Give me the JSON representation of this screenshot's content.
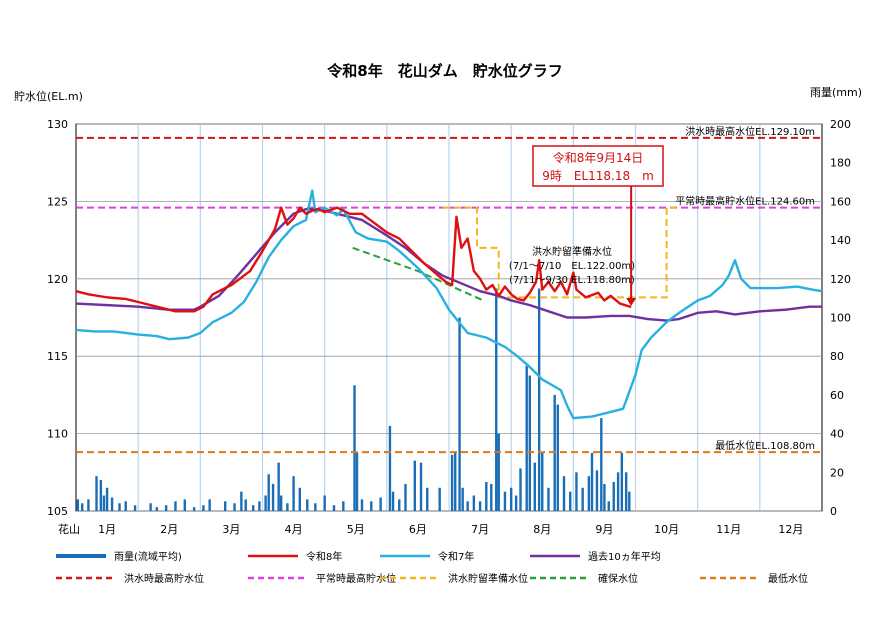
{
  "chart_data": {
    "type": "line",
    "title": "令和8年　花山ダム　貯水位グラフ",
    "y_left_label": "貯水位(EL.m)",
    "y_right_label": "雨量(mm)",
    "y_left_range": [
      105,
      130
    ],
    "y_left_ticks": [
      "105",
      "110",
      "115",
      "120",
      "125",
      "130"
    ],
    "y_right_range": [
      0,
      200
    ],
    "y_right_ticks": [
      "0",
      "20",
      "40",
      "60",
      "80",
      "100",
      "120",
      "140",
      "160",
      "180",
      "200"
    ],
    "x_corner_label": "花山",
    "months": [
      "1月",
      "2月",
      "3月",
      "4月",
      "5月",
      "6月",
      "7月",
      "8月",
      "9月",
      "10月",
      "11月",
      "12月"
    ],
    "reference_lines": [
      {
        "name": "洪水時最高貯水位",
        "label": "洪水時最高水位EL.129.10m",
        "value": 129.1,
        "color": "#d01818"
      },
      {
        "name": "平常時最高貯水位",
        "label": "平常時最高貯水位EL.124.60m",
        "value": 124.6,
        "color": "#e040e0"
      },
      {
        "name": "最低水位",
        "label": "最低水位EL.108.80m",
        "value": 108.8,
        "color": "#e07818"
      }
    ],
    "flood_reserve": {
      "name": "洪水貯留準備水位",
      "color": "#f0b818",
      "note_lines": [
        "洪水貯留準備水位",
        "(7/1～7/10　EL.122.00m)",
        "(7/11～9/30 EL.118.80m)"
      ],
      "points": [
        [
          5.9,
          124.6
        ],
        [
          6.45,
          124.6
        ],
        [
          6.45,
          122.0
        ],
        [
          6.8,
          122.0
        ],
        [
          6.8,
          118.8
        ],
        [
          9.5,
          118.8
        ],
        [
          9.5,
          124.6
        ],
        [
          9.65,
          124.6
        ]
      ]
    },
    "secure_level": {
      "name": "確保水位",
      "color": "#28a040",
      "points": [
        [
          4.45,
          122.0
        ],
        [
          5.5,
          120.5
        ],
        [
          6.55,
          118.6
        ]
      ]
    },
    "callout": {
      "line1": "令和8年9月14日",
      "line2": "9時　EL118.18　m",
      "x": 8.93,
      "y": 118.18
    },
    "series": [
      {
        "name": "令和8年",
        "color": "#e01010",
        "points": [
          [
            0.0,
            119.2
          ],
          [
            0.2,
            119.0
          ],
          [
            0.5,
            118.8
          ],
          [
            0.8,
            118.7
          ],
          [
            1.0,
            118.5
          ],
          [
            1.3,
            118.2
          ],
          [
            1.6,
            117.9
          ],
          [
            1.9,
            117.9
          ],
          [
            2.05,
            118.2
          ],
          [
            2.2,
            119.0
          ],
          [
            2.5,
            119.6
          ],
          [
            2.8,
            120.5
          ],
          [
            3.0,
            121.8
          ],
          [
            3.2,
            123.2
          ],
          [
            3.3,
            124.6
          ],
          [
            3.4,
            123.5
          ],
          [
            3.5,
            123.9
          ],
          [
            3.6,
            124.6
          ],
          [
            3.7,
            124.2
          ],
          [
            3.8,
            124.4
          ],
          [
            3.9,
            124.5
          ],
          [
            4.0,
            124.3
          ],
          [
            4.2,
            124.6
          ],
          [
            4.4,
            124.2
          ],
          [
            4.6,
            124.2
          ],
          [
            4.8,
            123.6
          ],
          [
            5.0,
            123.0
          ],
          [
            5.2,
            122.6
          ],
          [
            5.4,
            121.8
          ],
          [
            5.6,
            121.0
          ],
          [
            5.8,
            120.3
          ],
          [
            5.95,
            119.8
          ],
          [
            6.05,
            119.6
          ],
          [
            6.12,
            124.0
          ],
          [
            6.2,
            122.0
          ],
          [
            6.3,
            122.6
          ],
          [
            6.4,
            120.5
          ],
          [
            6.5,
            120.0
          ],
          [
            6.6,
            119.3
          ],
          [
            6.7,
            119.6
          ],
          [
            6.8,
            118.9
          ],
          [
            6.9,
            119.5
          ],
          [
            7.0,
            119.0
          ],
          [
            7.1,
            118.7
          ],
          [
            7.2,
            118.6
          ],
          [
            7.3,
            119.1
          ],
          [
            7.4,
            119.8
          ],
          [
            7.45,
            121.2
          ],
          [
            7.5,
            119.3
          ],
          [
            7.6,
            119.8
          ],
          [
            7.7,
            119.2
          ],
          [
            7.8,
            119.8
          ],
          [
            7.9,
            119.0
          ],
          [
            8.0,
            120.4
          ],
          [
            8.05,
            119.3
          ],
          [
            8.2,
            118.8
          ],
          [
            8.4,
            119.1
          ],
          [
            8.5,
            118.6
          ],
          [
            8.6,
            118.9
          ],
          [
            8.75,
            118.4
          ],
          [
            8.93,
            118.18
          ]
        ]
      },
      {
        "name": "令和7年",
        "color": "#28b0e0",
        "points": [
          [
            0.0,
            116.7
          ],
          [
            0.3,
            116.6
          ],
          [
            0.6,
            116.6
          ],
          [
            1.0,
            116.4
          ],
          [
            1.3,
            116.3
          ],
          [
            1.5,
            116.1
          ],
          [
            1.8,
            116.2
          ],
          [
            2.0,
            116.5
          ],
          [
            2.2,
            117.2
          ],
          [
            2.5,
            117.8
          ],
          [
            2.7,
            118.5
          ],
          [
            2.9,
            119.8
          ],
          [
            3.1,
            121.4
          ],
          [
            3.3,
            122.5
          ],
          [
            3.5,
            123.4
          ],
          [
            3.7,
            123.8
          ],
          [
            3.8,
            125.7
          ],
          [
            3.85,
            124.3
          ],
          [
            4.0,
            124.6
          ],
          [
            4.2,
            124.1
          ],
          [
            4.3,
            124.5
          ],
          [
            4.5,
            123.0
          ],
          [
            4.7,
            122.6
          ],
          [
            5.0,
            122.4
          ],
          [
            5.2,
            121.8
          ],
          [
            5.5,
            120.7
          ],
          [
            5.8,
            119.4
          ],
          [
            6.0,
            118.0
          ],
          [
            6.3,
            116.5
          ],
          [
            6.6,
            116.2
          ],
          [
            6.9,
            115.6
          ],
          [
            7.1,
            115.0
          ],
          [
            7.3,
            114.3
          ],
          [
            7.5,
            113.5
          ],
          [
            7.8,
            112.8
          ],
          [
            7.9,
            111.8
          ],
          [
            8.0,
            111.0
          ],
          [
            8.3,
            111.1
          ],
          [
            8.6,
            111.4
          ],
          [
            8.8,
            111.6
          ],
          [
            9.0,
            113.8
          ],
          [
            9.1,
            115.4
          ],
          [
            9.25,
            116.2
          ],
          [
            9.4,
            116.8
          ],
          [
            9.5,
            117.2
          ],
          [
            9.7,
            117.8
          ],
          [
            10.0,
            118.6
          ],
          [
            10.2,
            118.9
          ],
          [
            10.4,
            119.6
          ],
          [
            10.5,
            120.2
          ],
          [
            10.6,
            121.2
          ],
          [
            10.7,
            120.0
          ],
          [
            10.85,
            119.4
          ],
          [
            11.0,
            119.4
          ],
          [
            11.3,
            119.4
          ],
          [
            11.6,
            119.5
          ],
          [
            11.85,
            119.3
          ],
          [
            12.0,
            119.2
          ]
        ]
      },
      {
        "name": "過去10ヵ年平均",
        "color": "#7030a0",
        "points": [
          [
            0.0,
            118.4
          ],
          [
            0.5,
            118.3
          ],
          [
            1.0,
            118.2
          ],
          [
            1.5,
            118.0
          ],
          [
            1.9,
            118.0
          ],
          [
            2.0,
            118.2
          ],
          [
            2.3,
            118.9
          ],
          [
            2.6,
            120.2
          ],
          [
            2.9,
            121.6
          ],
          [
            3.2,
            123.0
          ],
          [
            3.5,
            124.2
          ],
          [
            3.7,
            124.5
          ],
          [
            3.9,
            124.5
          ],
          [
            4.1,
            124.3
          ],
          [
            4.3,
            124.1
          ],
          [
            4.6,
            123.8
          ],
          [
            4.8,
            123.3
          ],
          [
            5.0,
            122.8
          ],
          [
            5.3,
            122.0
          ],
          [
            5.6,
            121.0
          ],
          [
            5.9,
            120.2
          ],
          [
            6.2,
            119.7
          ],
          [
            6.5,
            119.2
          ],
          [
            6.8,
            118.9
          ],
          [
            7.0,
            118.6
          ],
          [
            7.3,
            118.3
          ],
          [
            7.6,
            117.9
          ],
          [
            7.9,
            117.5
          ],
          [
            8.2,
            117.5
          ],
          [
            8.6,
            117.6
          ],
          [
            8.9,
            117.6
          ],
          [
            9.2,
            117.4
          ],
          [
            9.5,
            117.3
          ],
          [
            9.7,
            117.4
          ],
          [
            10.0,
            117.8
          ],
          [
            10.3,
            117.9
          ],
          [
            10.6,
            117.7
          ],
          [
            11.0,
            117.9
          ],
          [
            11.4,
            118.0
          ],
          [
            11.8,
            118.2
          ],
          [
            12.0,
            118.2
          ]
        ]
      }
    ],
    "rainfall": {
      "name": "雨量(流域平均)",
      "color": "#1a6eb8",
      "bars": [
        [
          0.03,
          6
        ],
        [
          0.1,
          4
        ],
        [
          0.2,
          6
        ],
        [
          0.33,
          18
        ],
        [
          0.4,
          16
        ],
        [
          0.45,
          8
        ],
        [
          0.5,
          12
        ],
        [
          0.58,
          7
        ],
        [
          0.7,
          4
        ],
        [
          0.8,
          5
        ],
        [
          0.95,
          3
        ],
        [
          1.2,
          4
        ],
        [
          1.3,
          2
        ],
        [
          1.45,
          3
        ],
        [
          1.6,
          5
        ],
        [
          1.75,
          6
        ],
        [
          1.9,
          2
        ],
        [
          2.05,
          3
        ],
        [
          2.15,
          6
        ],
        [
          2.4,
          5
        ],
        [
          2.55,
          4
        ],
        [
          2.66,
          10
        ],
        [
          2.73,
          6
        ],
        [
          2.85,
          3
        ],
        [
          2.95,
          5
        ],
        [
          3.05,
          8
        ],
        [
          3.1,
          19
        ],
        [
          3.17,
          14
        ],
        [
          3.26,
          25
        ],
        [
          3.3,
          8
        ],
        [
          3.4,
          4
        ],
        [
          3.5,
          18
        ],
        [
          3.6,
          12
        ],
        [
          3.72,
          6
        ],
        [
          3.85,
          4
        ],
        [
          4.0,
          8
        ],
        [
          4.15,
          3
        ],
        [
          4.3,
          5
        ],
        [
          4.48,
          65
        ],
        [
          4.52,
          30
        ],
        [
          4.6,
          6
        ],
        [
          4.75,
          5
        ],
        [
          4.9,
          7
        ],
        [
          5.05,
          44
        ],
        [
          5.1,
          10
        ],
        [
          5.2,
          6
        ],
        [
          5.3,
          14
        ],
        [
          5.45,
          26
        ],
        [
          5.55,
          25
        ],
        [
          5.65,
          12
        ],
        [
          5.85,
          12
        ],
        [
          6.05,
          29
        ],
        [
          6.1,
          30
        ],
        [
          6.17,
          100
        ],
        [
          6.22,
          12
        ],
        [
          6.3,
          5
        ],
        [
          6.4,
          8
        ],
        [
          6.5,
          5
        ],
        [
          6.6,
          15
        ],
        [
          6.68,
          14
        ],
        [
          6.76,
          115
        ],
        [
          6.8,
          40
        ],
        [
          6.9,
          10
        ],
        [
          7.0,
          12
        ],
        [
          7.08,
          8
        ],
        [
          7.15,
          22
        ],
        [
          7.25,
          75
        ],
        [
          7.3,
          70
        ],
        [
          7.38,
          25
        ],
        [
          7.45,
          115
        ],
        [
          7.5,
          30
        ],
        [
          7.6,
          12
        ],
        [
          7.7,
          60
        ],
        [
          7.75,
          55
        ],
        [
          7.85,
          18
        ],
        [
          7.95,
          10
        ],
        [
          8.05,
          20
        ],
        [
          8.15,
          12
        ],
        [
          8.25,
          18
        ],
        [
          8.3,
          30
        ],
        [
          8.38,
          21
        ],
        [
          8.45,
          48
        ],
        [
          8.5,
          14
        ],
        [
          8.57,
          5
        ],
        [
          8.65,
          15
        ],
        [
          8.72,
          20
        ],
        [
          8.78,
          30
        ],
        [
          8.85,
          20
        ],
        [
          8.9,
          10
        ]
      ]
    },
    "legend": [
      {
        "label": "雨量(流域平均)",
        "color": "#1a6eb8",
        "style": "solid"
      },
      {
        "label": "令和8年",
        "color": "#e01010",
        "style": "solid"
      },
      {
        "label": "令和7年",
        "color": "#28b0e0",
        "style": "solid"
      },
      {
        "label": "過去10ヵ年平均",
        "color": "#7030a0",
        "style": "solid"
      },
      {
        "label": "洪水時最高貯水位",
        "color": "#d01818",
        "style": "dashed"
      },
      {
        "label": "平常時最高貯水位",
        "color": "#e040e0",
        "style": "dashed"
      },
      {
        "label": "洪水貯留準備水位",
        "color": "#f0b818",
        "style": "dashed"
      },
      {
        "label": "確保水位",
        "color": "#28a040",
        "style": "dashed"
      },
      {
        "label": "最低水位",
        "color": "#e07818",
        "style": "dashed"
      }
    ]
  }
}
